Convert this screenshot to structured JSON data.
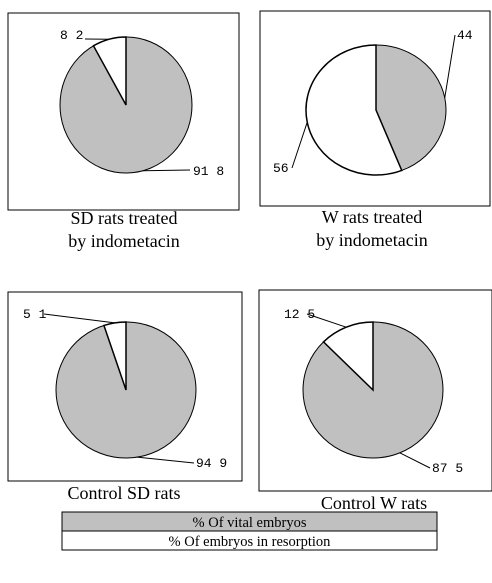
{
  "chart_data": [
    {
      "type": "pie",
      "title_lines": [
        "SD rats treated",
        "by indometacin"
      ],
      "slices": [
        {
          "category": "% Of vital embryos",
          "value": 91.8,
          "label": "91 8"
        },
        {
          "category": "% Of embryos in resorption",
          "value": 8.2,
          "label": "8 2"
        }
      ]
    },
    {
      "type": "pie",
      "title_lines": [
        "W rats treated",
        "by indometacin"
      ],
      "slices": [
        {
          "category": "% Of vital embryos",
          "value": 44,
          "label": "44"
        },
        {
          "category": "% Of embryos in resorption",
          "value": 56,
          "label": "56"
        }
      ]
    },
    {
      "type": "pie",
      "title_lines": [
        "Control SD rats"
      ],
      "slices": [
        {
          "category": "% Of vital embryos",
          "value": 94.9,
          "label": "94 9"
        },
        {
          "category": "% Of embryos in resorption",
          "value": 5.1,
          "label": "5 1"
        }
      ]
    },
    {
      "type": "pie",
      "title_lines": [
        "Control W rats"
      ],
      "slices": [
        {
          "category": "% Of vital embryos",
          "value": 87.5,
          "label": "87 5"
        },
        {
          "category": "% Of embryos in resorption",
          "value": 12.5,
          "label": "12 5"
        }
      ]
    }
  ],
  "legend": {
    "items": [
      {
        "label": "% Of vital embryos",
        "color": "#c0c0c0"
      },
      {
        "label": "% Of embryos in resorption",
        "color": "#ffffff"
      }
    ]
  },
  "colors": {
    "vital": "#c0c0c0",
    "resorption": "#ffffff",
    "stroke": "#000000"
  }
}
